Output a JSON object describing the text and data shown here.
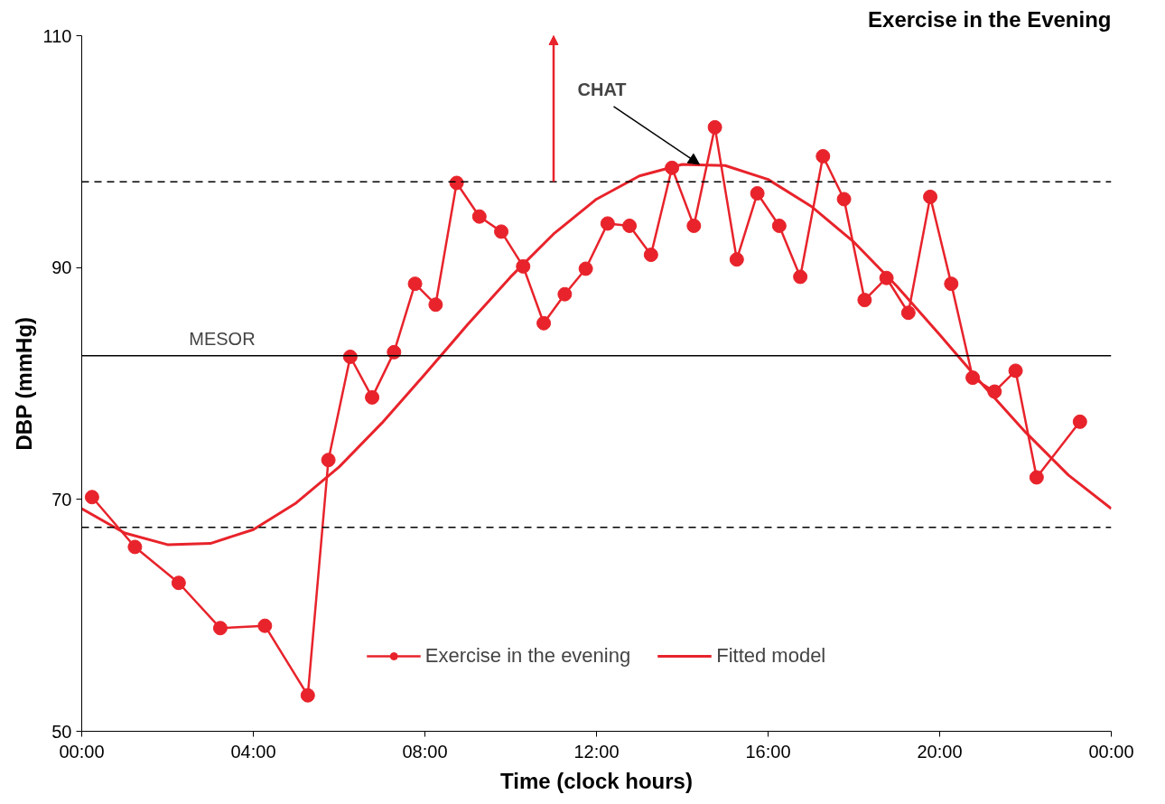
{
  "chart_data": {
    "type": "line",
    "title": "Exercise in the Evening",
    "xlabel": "Time (clock hours)",
    "ylabel": "DBP (mmHg)",
    "xlim": [
      0,
      24
    ],
    "ylim": [
      50,
      110
    ],
    "xticks": [
      {
        "value": 0,
        "label": "00:00"
      },
      {
        "value": 4,
        "label": "04:00"
      },
      {
        "value": 8,
        "label": "08:00"
      },
      {
        "value": 12,
        "label": "12:00"
      },
      {
        "value": 16,
        "label": "16:00"
      },
      {
        "value": 20,
        "label": "20:00"
      },
      {
        "value": 24,
        "label": "00:00"
      }
    ],
    "yticks": [
      50,
      70,
      90,
      110
    ],
    "grid": false,
    "legend": "bottom",
    "line_style": "solid",
    "series": [
      {
        "name": "Exercise in the evening",
        "marker": "circle",
        "color": "#e8232b",
        "x": [
          0.24,
          1.24,
          2.26,
          3.23,
          4.27,
          5.27,
          5.75,
          6.26,
          6.77,
          7.28,
          7.77,
          8.25,
          8.74,
          9.27,
          9.78,
          10.29,
          10.77,
          11.26,
          11.75,
          12.26,
          12.77,
          13.27,
          13.76,
          14.27,
          14.76,
          15.27,
          15.75,
          16.26,
          16.75,
          17.28,
          17.77,
          18.25,
          18.76,
          19.27,
          19.78,
          20.27,
          20.77,
          21.28,
          21.77,
          22.26,
          23.27
        ],
        "values": [
          70.2,
          65.9,
          62.8,
          58.9,
          59.1,
          53.1,
          73.4,
          82.3,
          78.8,
          82.7,
          88.6,
          86.8,
          97.3,
          94.4,
          93.1,
          90.1,
          85.2,
          87.7,
          89.9,
          93.8,
          93.6,
          91.1,
          98.6,
          93.6,
          102.1,
          90.7,
          96.4,
          93.6,
          89.2,
          99.6,
          95.9,
          87.2,
          89.1,
          86.1,
          96.1,
          88.6,
          80.5,
          79.3,
          81.1,
          71.9,
          76.7
        ]
      },
      {
        "name": "Fitted model",
        "marker": "none",
        "color": "#e8232b",
        "x": [
          0,
          1,
          2,
          3,
          4,
          5,
          6,
          7,
          8,
          9,
          10,
          11,
          12,
          13,
          14,
          15,
          16,
          17,
          18,
          19,
          20,
          21,
          22,
          23,
          24
        ],
        "values": [
          69.2,
          67.1,
          66.1,
          66.2,
          67.4,
          69.7,
          72.8,
          76.6,
          80.8,
          85.1,
          89.2,
          92.9,
          95.9,
          97.9,
          98.9,
          98.8,
          97.6,
          95.3,
          92.2,
          88.4,
          84.2,
          79.9,
          75.8,
          72.1,
          69.2
        ]
      }
    ],
    "ref_lines": [
      {
        "axis": "y",
        "value": 82.4,
        "label": "MESOR",
        "color": "#000000",
        "line_style": "solid"
      },
      {
        "axis": "y",
        "value": 97.4,
        "label": null,
        "color": "#000000",
        "line_style": "dashed"
      },
      {
        "axis": "y",
        "value": 67.6,
        "label": null,
        "color": "#000000",
        "line_style": "dashed"
      }
    ],
    "annotations": [
      {
        "text": "CHAT",
        "x": 14.4,
        "y": 98.9
      }
    ]
  }
}
